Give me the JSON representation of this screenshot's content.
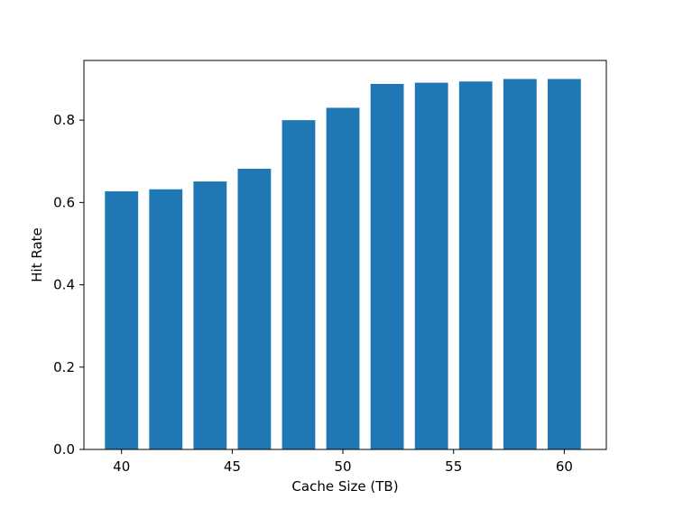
{
  "chart_data": {
    "type": "bar",
    "title": "",
    "xlabel": "Cache Size (TB)",
    "ylabel": "Hit Rate",
    "x": [
      40,
      42,
      44,
      46,
      48,
      50,
      52,
      54,
      56,
      58,
      60
    ],
    "values": [
      0.627,
      0.632,
      0.651,
      0.682,
      0.8,
      0.83,
      0.888,
      0.891,
      0.894,
      0.9,
      0.9
    ],
    "bar_width": 1.5,
    "xlim": [
      38.3,
      61.9
    ],
    "ylim": [
      0.0,
      0.945
    ],
    "xticks": [
      40,
      45,
      50,
      55,
      60
    ],
    "yticks": [
      0.0,
      0.2,
      0.4,
      0.6,
      0.8
    ],
    "ytick_labels": [
      "0.0",
      "0.2",
      "0.4",
      "0.6",
      "0.8"
    ],
    "grid": false,
    "legend": "none",
    "bar_color": "#1f77b4"
  }
}
